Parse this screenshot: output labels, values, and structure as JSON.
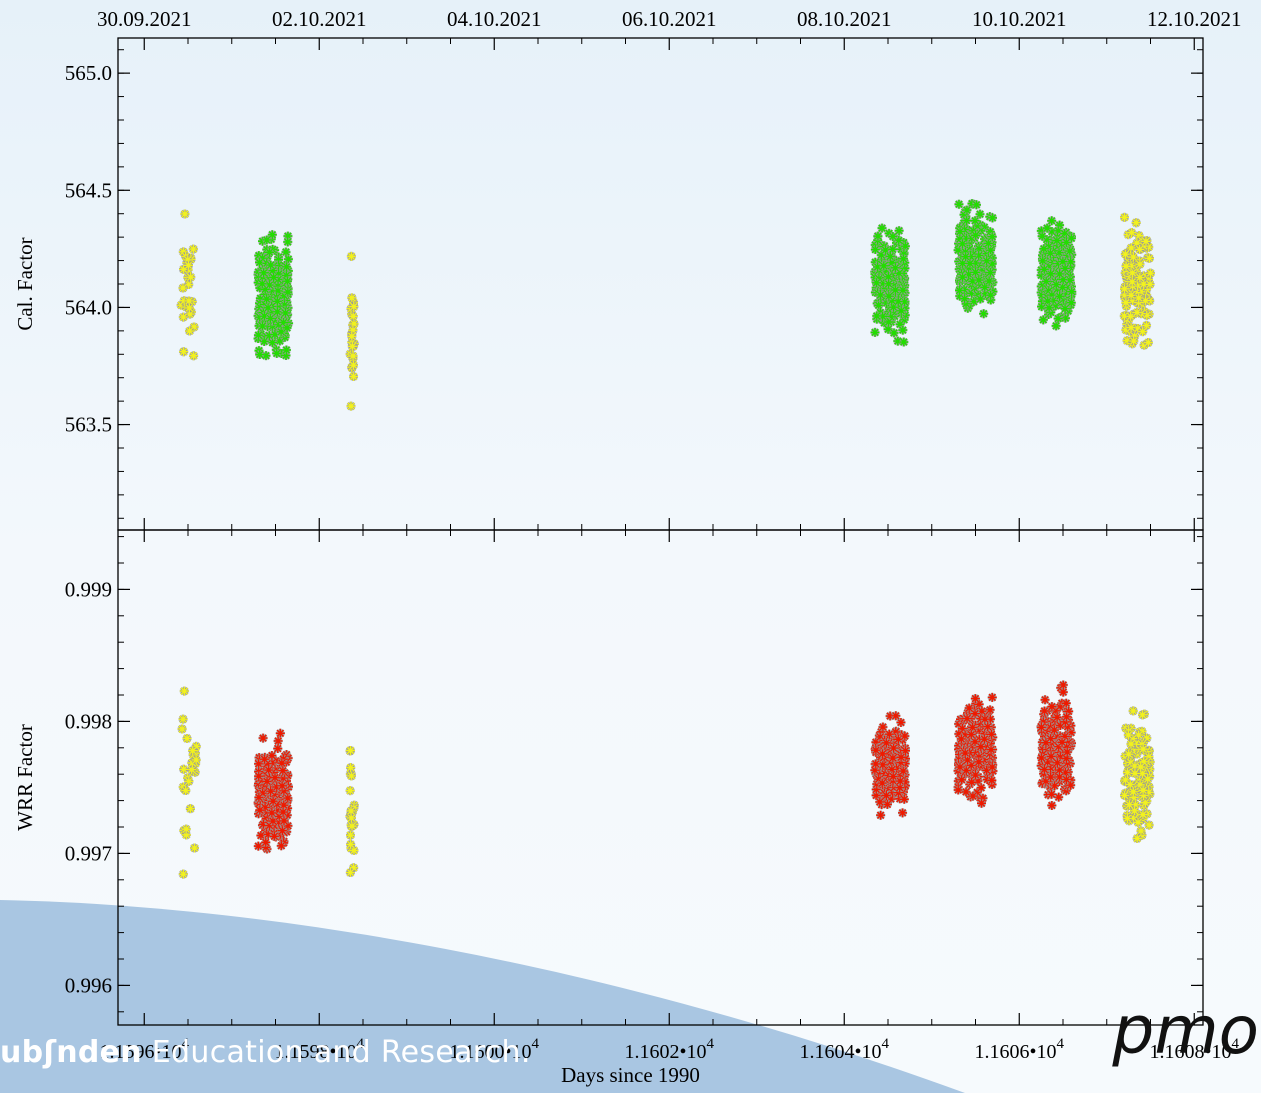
{
  "footer": {
    "brand_text": "ub",
    "brand_text2": "nden",
    "tagline": "Education and Research.",
    "logo": "pmo"
  },
  "colors": {
    "reference": "#f2f21e",
    "calibration": "#22dd00",
    "wrr": "#ee1a00",
    "marker_edge": "#999999",
    "swoosh": "#a9c6e2"
  },
  "chart_data": {
    "type": "scatter",
    "marker": "asterisk",
    "shared_x": true,
    "xlabel": "Days since 1990",
    "xlim": [
      11595.7,
      11608.1
    ],
    "x_ticks": [
      11596,
      11598,
      11600,
      11602,
      11604,
      11606,
      11608
    ],
    "x_tick_labels": [
      "1.1596•10",
      "1.1598•10",
      "1.1600•10",
      "1.1602•10",
      "1.1604•10",
      "1.1606•10",
      "1.1608•10"
    ],
    "x_tick_exponent": "4",
    "top_axis": {
      "labels": [
        "30.09.2021",
        "02.10.2021",
        "04.10.2021",
        "06.10.2021",
        "08.10.2021",
        "10.10.2021",
        "12.10.2021"
      ],
      "positions": [
        11596,
        11598,
        11600,
        11602,
        11604,
        11606,
        11608
      ]
    },
    "panels": [
      {
        "ylabel": "Cal. Factor",
        "ylim": [
          563.05,
          565.15
        ],
        "y_ticks": [
          563.5,
          564.0,
          564.5,
          565.0
        ],
        "y_tick_labels": [
          "563.5",
          "564.0",
          "564.5",
          "565.0"
        ],
        "clusters": [
          {
            "series": "reference",
            "x_range": [
              11596.4,
              11596.6
            ],
            "y_center": 564.05,
            "y_spread": 0.55,
            "count": 28
          },
          {
            "series": "calibration",
            "x_range": [
              11597.3,
              11597.65
            ],
            "y_center": 564.05,
            "y_spread": 0.4,
            "count": 240
          },
          {
            "series": "reference",
            "x_range": [
              11598.35,
              11598.4
            ],
            "y_center": 563.85,
            "y_spread": 0.5,
            "count": 26
          },
          {
            "series": "calibration",
            "x_range": [
              11604.35,
              11604.7
            ],
            "y_center": 564.1,
            "y_spread": 0.35,
            "count": 240
          },
          {
            "series": "calibration",
            "x_range": [
              11605.3,
              11605.7
            ],
            "y_center": 564.2,
            "y_spread": 0.35,
            "count": 240
          },
          {
            "series": "calibration",
            "x_range": [
              11606.25,
              11606.6
            ],
            "y_center": 564.15,
            "y_spread": 0.35,
            "count": 240
          },
          {
            "series": "reference",
            "x_range": [
              11607.2,
              11607.5
            ],
            "y_center": 564.1,
            "y_spread": 0.45,
            "count": 130
          }
        ]
      },
      {
        "ylabel": "WRR Factor",
        "ylim": [
          0.9957,
          0.99945
        ],
        "y_ticks": [
          0.996,
          0.997,
          0.998,
          0.999
        ],
        "y_tick_labels": [
          "0.996",
          "0.997",
          "0.998",
          "0.999"
        ],
        "clusters": [
          {
            "series": "reference",
            "x_range": [
              11596.4,
              11596.6
            ],
            "y_center": 0.9975,
            "y_spread": 0.0009,
            "count": 28
          },
          {
            "series": "wrr",
            "x_range": [
              11597.3,
              11597.65
            ],
            "y_center": 0.99745,
            "y_spread": 0.0006,
            "count": 240
          },
          {
            "series": "reference",
            "x_range": [
              11598.35,
              11598.4
            ],
            "y_center": 0.9973,
            "y_spread": 0.0009,
            "count": 26
          },
          {
            "series": "wrr",
            "x_range": [
              11604.35,
              11604.7
            ],
            "y_center": 0.99765,
            "y_spread": 0.0005,
            "count": 240
          },
          {
            "series": "wrr",
            "x_range": [
              11605.3,
              11605.7
            ],
            "y_center": 0.9978,
            "y_spread": 0.0006,
            "count": 240
          },
          {
            "series": "wrr",
            "x_range": [
              11606.25,
              11606.6
            ],
            "y_center": 0.9978,
            "y_spread": 0.0006,
            "count": 240
          },
          {
            "series": "reference",
            "x_range": [
              11607.2,
              11607.5
            ],
            "y_center": 0.9976,
            "y_spread": 0.0008,
            "count": 130
          }
        ]
      }
    ]
  }
}
